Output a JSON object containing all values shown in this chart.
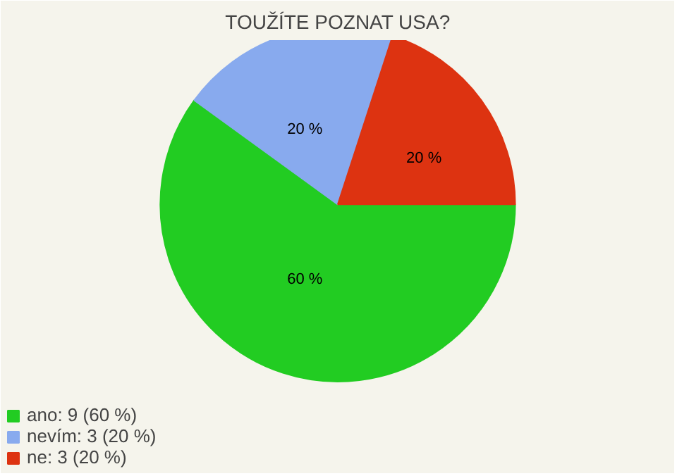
{
  "chart_data": {
    "type": "pie",
    "title": "TOUŽÍTE POZNAT USA?",
    "categories": [
      "ano: 9 (60 %)",
      "nevím: 3 (20 %)",
      "ne: 3 (20 %)"
    ],
    "values": [
      60,
      20,
      20
    ],
    "colors": [
      "#22cc22",
      "#88aaee",
      "#dd3311"
    ],
    "value_labels": [
      "60 %",
      "20 %",
      "20 %"
    ],
    "legend": "bottom left"
  }
}
